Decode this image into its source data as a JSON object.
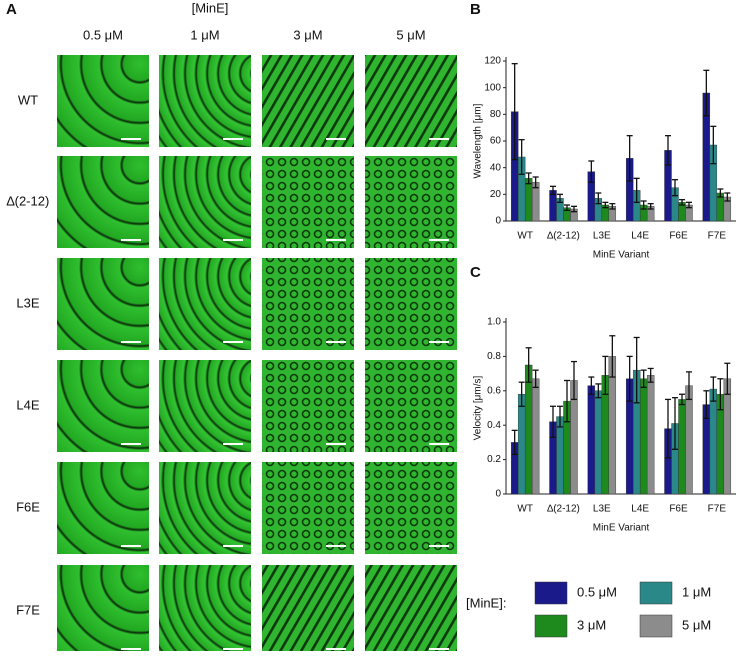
{
  "panel_a": {
    "panel_label": "A",
    "header": "[MinE]",
    "columns": [
      "0.5 μM",
      "1 μM",
      "3 μM",
      "5 μM"
    ],
    "rows": [
      "WT",
      "∆(2-12)",
      "L3E",
      "L4E",
      "F6E",
      "F7E"
    ]
  },
  "legend": {
    "title": "[MinE]:"
  },
  "chart_data": [
    {
      "type": "bar",
      "panel_label": "B",
      "y_label": "Wavelength [μm]",
      "x_label": "MinE Variant",
      "categories": [
        "WT",
        "∆(2-12)",
        "L3E",
        "L4E",
        "F6E",
        "F7E"
      ],
      "ylim": [
        0,
        120
      ],
      "yticks": [
        0,
        20,
        40,
        60,
        80,
        100,
        120
      ],
      "series": [
        {
          "name": "0.5 μM",
          "color": "#1a1a8a",
          "values": [
            82,
            23,
            37,
            47,
            53,
            96
          ],
          "errors": [
            36,
            3,
            8,
            17,
            11,
            17
          ]
        },
        {
          "name": "1 μM",
          "color": "#2a8888",
          "values": [
            48,
            17,
            17,
            23,
            25,
            57
          ],
          "errors": [
            13,
            3,
            4,
            9,
            6,
            14
          ]
        },
        {
          "name": "3 μM",
          "color": "#1e8a1e",
          "values": [
            32,
            10,
            12,
            12,
            14,
            21
          ],
          "errors": [
            4,
            2,
            2,
            3,
            2,
            3
          ]
        },
        {
          "name": "5 μM",
          "color": "#8c8c8c",
          "values": [
            29,
            9,
            11,
            11,
            12,
            18
          ],
          "errors": [
            4,
            2,
            2,
            2,
            2,
            3
          ]
        }
      ]
    },
    {
      "type": "bar",
      "panel_label": "C",
      "y_label": "Velocity [μm/s]",
      "x_label": "MinE Variant",
      "categories": [
        "WT",
        "∆(2-12)",
        "L3E",
        "L4E",
        "F6E",
        "F7E"
      ],
      "ylim": [
        0,
        1
      ],
      "yticks": [
        0,
        0.2,
        0.4,
        0.6,
        0.8,
        {
          "value": 1,
          "label": "1.0"
        }
      ],
      "series": [
        {
          "name": "0.5 μM",
          "color": "#1a1a8a",
          "values": [
            0.3,
            0.42,
            0.63,
            0.67,
            0.38,
            0.52
          ],
          "errors": [
            0.07,
            0.09,
            0.05,
            0.13,
            0.17,
            0.08
          ]
        },
        {
          "name": "1 μM",
          "color": "#2a8888",
          "values": [
            0.58,
            0.45,
            0.6,
            0.72,
            0.41,
            0.61
          ],
          "errors": [
            0.07,
            0.06,
            0.04,
            0.19,
            0.15,
            0.07
          ]
        },
        {
          "name": "3 μM",
          "color": "#1e8a1e",
          "values": [
            0.75,
            0.54,
            0.69,
            0.67,
            0.55,
            0.58
          ],
          "errors": [
            0.1,
            0.12,
            0.11,
            0.05,
            0.03,
            0.09
          ]
        },
        {
          "name": "5 μM",
          "color": "#8c8c8c",
          "values": [
            0.67,
            0.66,
            0.8,
            0.69,
            0.63,
            0.67
          ],
          "errors": [
            0.05,
            0.11,
            0.12,
            0.04,
            0.08,
            0.09
          ]
        }
      ]
    }
  ]
}
